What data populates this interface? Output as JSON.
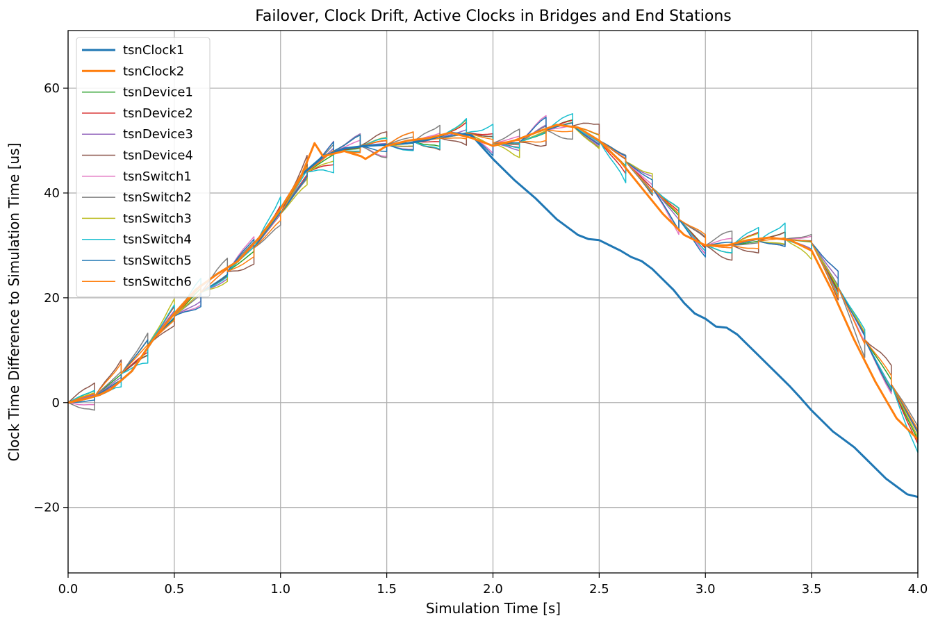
{
  "chart_data": {
    "type": "line",
    "title": "Failover, Clock Drift, Active Clocks in Bridges and End Stations",
    "xlabel": "Simulation Time [s]",
    "ylabel": "Clock Time Difference to Simulation Time [us]",
    "xlim": [
      0,
      4
    ],
    "ylim": [
      -32.5,
      71
    ],
    "xticks": [
      0,
      0.5,
      1,
      1.5,
      2,
      2.5,
      3,
      3.5,
      4
    ],
    "xtick_labels": [
      "0.0",
      "0.5",
      "1.0",
      "1.5",
      "2.0",
      "2.5",
      "3.0",
      "3.5",
      "4.0"
    ],
    "yticks": [
      -20,
      0,
      20,
      40,
      60
    ],
    "ytick_labels": [
      "−20",
      "0",
      "20",
      "40",
      "60"
    ],
    "grid": true,
    "legend_position": "top-left",
    "sync_interval_s": 0.125,
    "series": [
      {
        "name": "tsnClock1",
        "color": "#1f77b4",
        "linewidth": 3,
        "sawtooth": false,
        "x": [
          0,
          0.05,
          0.1,
          0.15,
          0.2,
          0.3,
          0.4,
          0.5,
          0.6,
          0.7,
          0.8,
          0.9,
          1.0,
          1.1,
          1.2,
          1.3,
          1.4,
          1.5,
          1.6,
          1.7,
          1.8,
          1.9,
          2.0,
          2.1,
          2.2,
          2.3,
          2.4,
          2.45,
          2.5,
          2.55,
          2.6,
          2.65,
          2.7,
          2.75,
          2.8,
          2.85,
          2.9,
          2.95,
          3.0,
          3.05,
          3.1,
          3.15,
          3.2,
          3.25,
          3.3,
          3.35,
          3.4,
          3.45,
          3.5,
          3.55,
          3.6,
          3.65,
          3.7,
          3.75,
          3.8,
          3.85,
          3.9,
          3.95,
          4.0
        ],
        "y": [
          0,
          0.4,
          0.9,
          1.5,
          2.5,
          6,
          12,
          17,
          21.5,
          24.5,
          27,
          31.5,
          37,
          43.5,
          47,
          48.5,
          49,
          49.2,
          49.5,
          50.2,
          51.5,
          51,
          46.5,
          42.5,
          39,
          35,
          32,
          31.2,
          31,
          30,
          29,
          27.8,
          27,
          25.5,
          23.5,
          21.5,
          19,
          17,
          16,
          14.5,
          14.3,
          13,
          11,
          9,
          7,
          5,
          3,
          0.8,
          -1.5,
          -3.5,
          -5.5,
          -7,
          -8.5,
          -10.5,
          -12.5,
          -14.5,
          -16,
          -17.5,
          -18
        ]
      },
      {
        "name": "tsnClock2",
        "color": "#ff7f0e",
        "linewidth": 3,
        "sawtooth": false,
        "x": [
          0,
          0.05,
          0.1,
          0.15,
          0.2,
          0.3,
          0.4,
          0.5,
          0.6,
          0.7,
          0.8,
          0.9,
          1.0,
          1.1,
          1.16,
          1.2,
          1.3,
          1.38,
          1.4,
          1.5,
          1.6,
          1.7,
          1.8,
          1.9,
          2.0,
          2.1,
          2.2,
          2.3,
          2.4,
          2.5,
          2.6,
          2.7,
          2.8,
          2.9,
          3.0,
          3.1,
          3.2,
          3.3,
          3.4,
          3.5,
          3.6,
          3.7,
          3.8,
          3.9,
          4.0
        ],
        "y": [
          0,
          0.4,
          0.9,
          1.5,
          2.5,
          6,
          12,
          17,
          21.5,
          24.5,
          27,
          31.5,
          37,
          43.5,
          49.5,
          47,
          48,
          47,
          46.5,
          49,
          50,
          50.5,
          51.5,
          50.5,
          49,
          50,
          51.5,
          53,
          52.5,
          50,
          46,
          41,
          36,
          32,
          30,
          30,
          31,
          31.5,
          31,
          29,
          21,
          12,
          4,
          -3,
          -7
        ]
      },
      {
        "name": "tsnDevice1",
        "color": "#2ca02c",
        "linewidth": 1.5,
        "sawtooth": true,
        "amp": 1.2,
        "phase": 1.3
      },
      {
        "name": "tsnDevice2",
        "color": "#d62728",
        "linewidth": 1.5,
        "sawtooth": true,
        "amp": 1.6,
        "phase": 2.1
      },
      {
        "name": "tsnDevice3",
        "color": "#9467bd",
        "linewidth": 1.5,
        "sawtooth": true,
        "amp": 1.4,
        "phase": 3.4
      },
      {
        "name": "tsnDevice4",
        "color": "#8c564b",
        "linewidth": 1.5,
        "sawtooth": true,
        "amp": 2.6,
        "phase": 0.7
      },
      {
        "name": "tsnSwitch1",
        "color": "#e377c2",
        "linewidth": 1.5,
        "sawtooth": true,
        "amp": 1.9,
        "phase": 4.2
      },
      {
        "name": "tsnSwitch2",
        "color": "#7f7f7f",
        "linewidth": 1.5,
        "sawtooth": true,
        "amp": 2.2,
        "phase": 5.0
      },
      {
        "name": "tsnSwitch3",
        "color": "#bcbd22",
        "linewidth": 1.5,
        "sawtooth": true,
        "amp": 2.0,
        "phase": 2.8
      },
      {
        "name": "tsnSwitch4",
        "color": "#17becf",
        "linewidth": 1.5,
        "sawtooth": true,
        "amp": 2.8,
        "phase": 1.9
      },
      {
        "name": "tsnSwitch5",
        "color": "#1f77b4",
        "linewidth": 1.5,
        "sawtooth": true,
        "amp": 1.8,
        "phase": 3.9
      },
      {
        "name": "tsnSwitch6",
        "color": "#ff7f0e",
        "linewidth": 1.5,
        "sawtooth": true,
        "amp": 1.5,
        "phase": 0.2
      }
    ],
    "active_master_reference": {
      "x": [
        0,
        0.125,
        0.25,
        0.375,
        0.5,
        0.625,
        0.75,
        0.875,
        1.0,
        1.125,
        1.25,
        1.375,
        1.5,
        1.625,
        1.75,
        1.875,
        2.0,
        2.125,
        2.25,
        2.375,
        2.5,
        2.625,
        2.75,
        2.875,
        3.0,
        3.125,
        3.25,
        3.375,
        3.5,
        3.625,
        3.75,
        3.875,
        4.0
      ],
      "y": [
        0,
        1.2,
        5.5,
        11,
        16.5,
        21,
        25,
        29.5,
        36,
        44,
        48,
        49,
        49.2,
        49.8,
        50.5,
        51.5,
        49.5,
        49.7,
        52,
        52.8,
        50,
        46,
        41,
        35,
        30,
        30,
        30.8,
        31.2,
        30.5,
        22,
        12,
        3.5,
        -6
      ]
    }
  }
}
